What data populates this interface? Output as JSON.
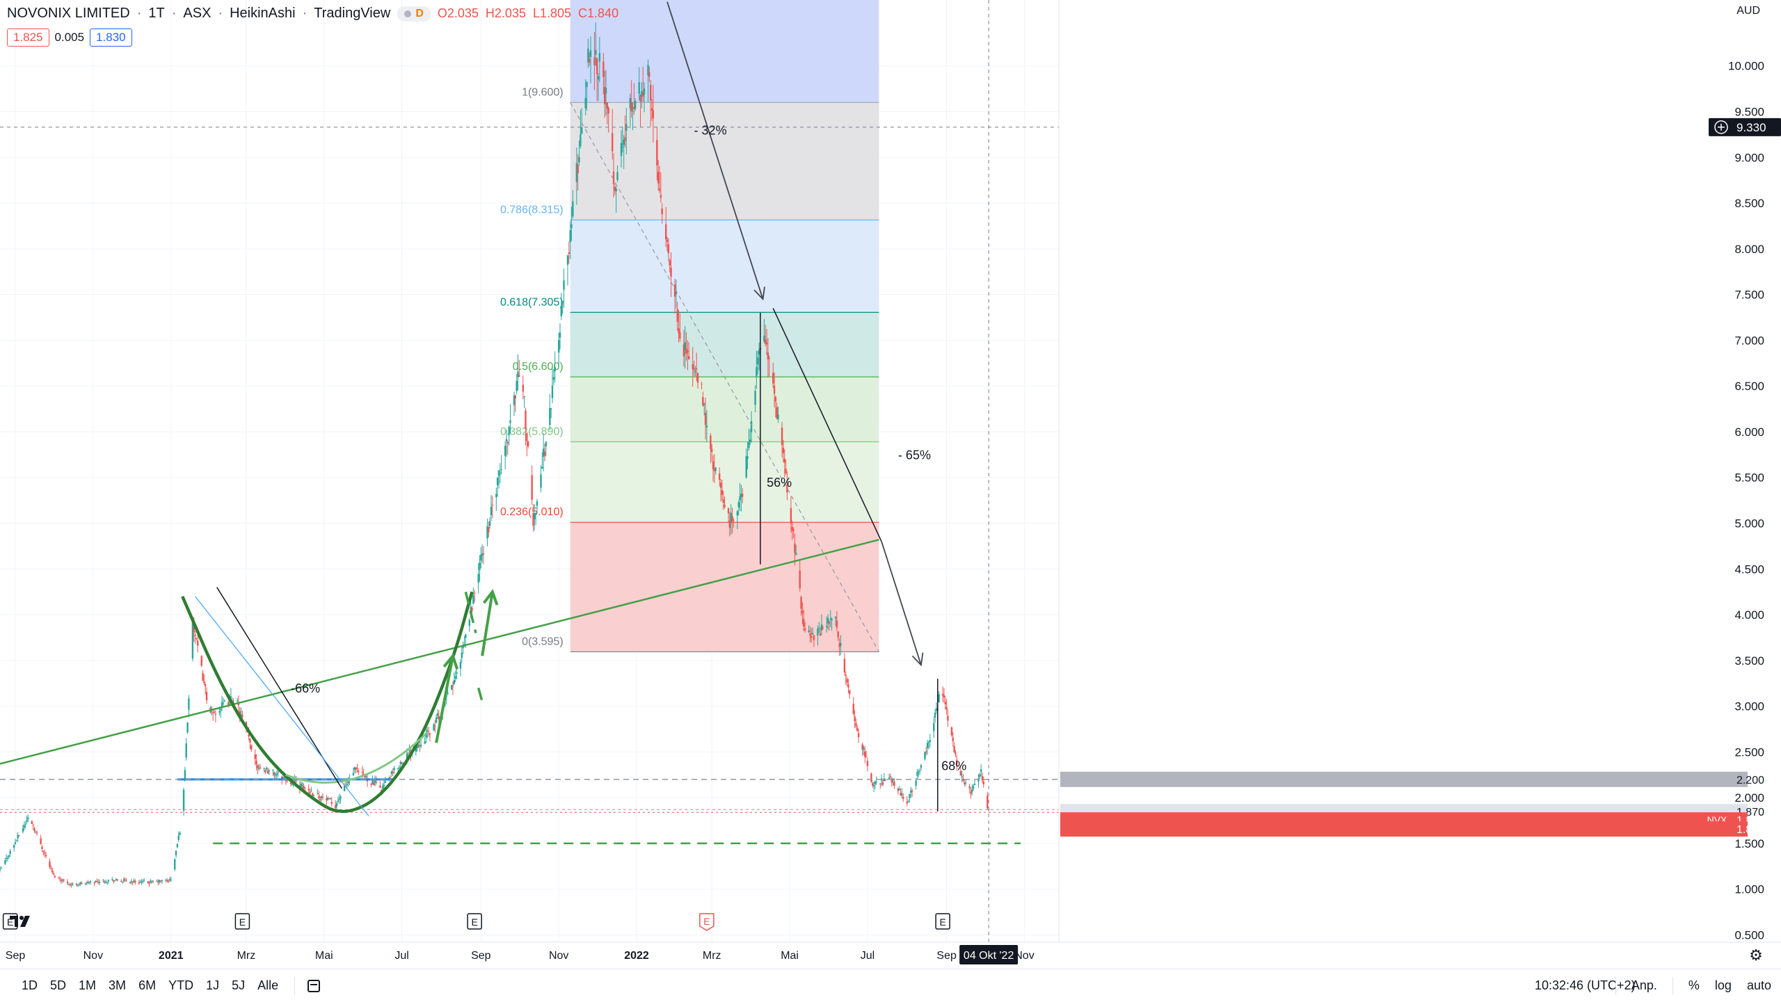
{
  "legend": {
    "symbol": "NOVONIX LIMITED",
    "interval": "1T",
    "exchange": "ASX",
    "chart_style": "HeikinAshi",
    "source": "TradingView",
    "badge_letter": "D",
    "open": "O2.035",
    "high": "H2.035",
    "low": "L1.805",
    "close": "C1.840"
  },
  "bid_ask": {
    "bid": "1.825",
    "spread": "0.005",
    "ask": "1.830"
  },
  "colors": {
    "up": "#26a69a",
    "down": "#ef5350",
    "green_lines": "#43a047",
    "blue_line": "#2962ff",
    "fib_0": "#f9d0cf",
    "fib_1": "#cdd8fa",
    "axis_text": "#131722"
  },
  "icons": {
    "logo": "tradingview-logo-icon",
    "calendar": "calendar-icon",
    "settings": "gear-icon",
    "crosshair": "crosshair-plus-icon"
  },
  "bottom_bar": {
    "timeframes": [
      "1D",
      "5D",
      "1M",
      "3M",
      "6M",
      "YTD",
      "1J",
      "5J",
      "Alle"
    ],
    "clock": "10:32:46 (UTC+2)",
    "right": [
      "Anp.",
      "%",
      "log",
      "auto"
    ]
  },
  "chart_data": {
    "type": "candlestick",
    "style": "HeikinAshi",
    "currency": "AUD",
    "y_scale": "linear",
    "ylim": [
      0.42,
      10.72
    ],
    "y_ticks": [
      "10.000",
      "9.500",
      "9.000",
      "8.500",
      "8.000",
      "7.500",
      "7.000",
      "6.500",
      "6.000",
      "5.500",
      "5.000",
      "4.500",
      "4.000",
      "3.500",
      "3.000",
      "2.500",
      "2.000",
      "1.500",
      "1.000",
      "0.500"
    ],
    "x_range": [
      "2020-08-20",
      "2022-11-28"
    ],
    "x_ticks": [
      {
        "date": "2020-09-01",
        "label": "Sep"
      },
      {
        "date": "2020-11-01",
        "label": "Nov"
      },
      {
        "date": "2021-01-01",
        "label": "2021"
      },
      {
        "date": "2021-03-01",
        "label": "Mrz"
      },
      {
        "date": "2021-05-01",
        "label": "Mai"
      },
      {
        "date": "2021-07-01",
        "label": "Jul"
      },
      {
        "date": "2021-09-01",
        "label": "Sep"
      },
      {
        "date": "2021-11-01",
        "label": "Nov"
      },
      {
        "date": "2022-01-01",
        "label": "2022"
      },
      {
        "date": "2022-03-01",
        "label": "Mrz"
      },
      {
        "date": "2022-05-01",
        "label": "Mai"
      },
      {
        "date": "2022-07-01",
        "label": "Jul"
      },
      {
        "date": "2022-09-01",
        "label": "Sep"
      },
      {
        "date": "2022-11-01",
        "label": "Nov"
      }
    ],
    "crosshair_date_label": "04 Okt '22",
    "crosshair_date": "2022-10-04",
    "crosshair_price": 9.33,
    "crosshair_price_label": "9.330",
    "earnings_markers": [
      {
        "date": "2020-08-28",
        "label": "E"
      },
      {
        "date": "2021-02-26",
        "label": "E"
      },
      {
        "date": "2021-08-27",
        "label": "E"
      },
      {
        "date": "2022-02-25",
        "label": "E",
        "highlight": true
      },
      {
        "date": "2022-08-29",
        "label": "E"
      }
    ],
    "price_badges": [
      {
        "label": "2.200",
        "value": 2.2,
        "kind": "line-gray"
      },
      {
        "label": "1.870",
        "value": 1.87,
        "kind": "gray-light"
      },
      {
        "label": "1.840",
        "value": 1.84,
        "kind": "last-red",
        "ticker": "NVX"
      },
      {
        "label": "1.825",
        "value": 1.825,
        "kind": "bid-red"
      }
    ],
    "key_points": [
      {
        "date": "2020-08-20",
        "price": 1.2
      },
      {
        "date": "2020-09-12",
        "price": 1.8
      },
      {
        "date": "2020-10-01",
        "price": 1.15
      },
      {
        "date": "2020-10-15",
        "price": 1.05
      },
      {
        "date": "2020-11-15",
        "price": 1.1
      },
      {
        "date": "2020-12-15",
        "price": 1.07
      },
      {
        "date": "2021-01-01",
        "price": 1.1
      },
      {
        "date": "2021-01-10",
        "price": 1.8
      },
      {
        "date": "2021-01-18",
        "price": 3.9
      },
      {
        "date": "2021-02-01",
        "price": 2.9
      },
      {
        "date": "2021-02-20",
        "price": 3.1
      },
      {
        "date": "2021-03-10",
        "price": 2.35
      },
      {
        "date": "2021-04-10",
        "price": 2.15
      },
      {
        "date": "2021-05-10",
        "price": 1.92
      },
      {
        "date": "2021-05-25",
        "price": 2.3
      },
      {
        "date": "2021-06-15",
        "price": 2.1
      },
      {
        "date": "2021-07-01",
        "price": 2.4
      },
      {
        "date": "2021-07-25",
        "price": 2.75
      },
      {
        "date": "2021-08-15",
        "price": 3.4
      },
      {
        "date": "2021-09-01",
        "price": 4.6
      },
      {
        "date": "2021-09-20",
        "price": 5.8
      },
      {
        "date": "2021-10-01",
        "price": 6.7
      },
      {
        "date": "2021-10-05",
        "price": 6.3
      },
      {
        "date": "2021-10-12",
        "price": 5.0
      },
      {
        "date": "2021-10-25",
        "price": 6.2
      },
      {
        "date": "2021-11-15",
        "price": 8.8
      },
      {
        "date": "2021-11-25",
        "price": 10.2
      },
      {
        "date": "2021-12-05",
        "price": 10.0
      },
      {
        "date": "2021-12-15",
        "price": 8.7
      },
      {
        "date": "2021-12-28",
        "price": 9.6
      },
      {
        "date": "2022-01-10",
        "price": 9.9
      },
      {
        "date": "2022-01-20",
        "price": 8.6
      },
      {
        "date": "2022-02-05",
        "price": 7.0
      },
      {
        "date": "2022-02-20",
        "price": 6.5
      },
      {
        "date": "2022-03-01",
        "price": 5.7
      },
      {
        "date": "2022-03-15",
        "price": 5.0
      },
      {
        "date": "2022-03-25",
        "price": 5.3
      },
      {
        "date": "2022-04-10",
        "price": 7.2
      },
      {
        "date": "2022-04-20",
        "price": 6.3
      },
      {
        "date": "2022-05-01",
        "price": 5.2
      },
      {
        "date": "2022-05-12",
        "price": 3.9
      },
      {
        "date": "2022-05-20",
        "price": 3.75
      },
      {
        "date": "2022-06-05",
        "price": 4.0
      },
      {
        "date": "2022-06-20",
        "price": 2.9
      },
      {
        "date": "2022-07-05",
        "price": 2.15
      },
      {
        "date": "2022-07-20",
        "price": 2.2
      },
      {
        "date": "2022-08-01",
        "price": 1.95
      },
      {
        "date": "2022-08-18",
        "price": 2.6
      },
      {
        "date": "2022-08-28",
        "price": 3.2
      },
      {
        "date": "2022-09-10",
        "price": 2.3
      },
      {
        "date": "2022-09-20",
        "price": 2.05
      },
      {
        "date": "2022-09-28",
        "price": 2.3
      },
      {
        "date": "2022-10-04",
        "price": 1.84
      }
    ],
    "fibonacci": {
      "start_date": "2021-11-10",
      "end_date": "2022-07-10",
      "levels": [
        {
          "ratio": "1",
          "price": 9.6,
          "label": "1(9.600)",
          "fill": "#cdd8fa",
          "line": "#a9a9b1",
          "text": "#787b86"
        },
        {
          "ratio": "0.786",
          "price": 8.315,
          "label": "0.786(8.315)",
          "fill": "#e3e3e6",
          "line": "#64b5f6",
          "text": "#64b5f6"
        },
        {
          "ratio": "0.618",
          "price": 7.305,
          "label": "0.618(7.305)",
          "fill": "#ddeafa",
          "line": "#00897b",
          "text": "#00897b"
        },
        {
          "ratio": "0.5",
          "price": 6.6,
          "label": "0.5(6.600)",
          "fill": "#cfe9e6",
          "line": "#4caf50",
          "text": "#4caf50"
        },
        {
          "ratio": "0.382",
          "price": 5.89,
          "label": "0.382(5.890)",
          "fill": "#def0db",
          "line": "#81c784",
          "text": "#81c784"
        },
        {
          "ratio": "0.236",
          "price": 5.01,
          "label": "0.236(5.010)",
          "fill": "#e6f3e3",
          "line": "#f44336",
          "text": "#f44336"
        },
        {
          "ratio": "0",
          "price": 3.595,
          "label": "0(3.595)",
          "fill": "#f9d0cf",
          "line": "#787b86",
          "text": "#787b86"
        }
      ]
    },
    "annotations": [
      {
        "text": "- 32%",
        "date": "2022-02-15",
        "price": 9.25
      },
      {
        "text": "-66%",
        "date": "2021-04-05",
        "price": 3.15
      },
      {
        "text": "56%",
        "date": "2022-04-13",
        "price": 5.4
      },
      {
        "text": "- 65%",
        "date": "2022-07-25",
        "price": 5.7
      },
      {
        "text": "68%",
        "date": "2022-08-28",
        "price": 2.3
      }
    ],
    "drawings": {
      "trendline_green": {
        "from": {
          "date": "2020-08-20",
          "price": 2.37
        },
        "to": {
          "date": "2022-07-10",
          "price": 4.82
        }
      },
      "support_blue": {
        "from": {
          "date": "2021-01-06",
          "price": 2.2
        },
        "to": {
          "date": "2021-06-25",
          "price": 2.2
        }
      },
      "dashed_green_support": {
        "from": {
          "date": "2021-02-03",
          "price": 1.5
        },
        "to": {
          "date": "2022-10-29",
          "price": 1.5
        }
      },
      "dashed_gray_2200": {
        "price": 2.2
      },
      "dashed_gray_1870": {
        "price": 1.87
      },
      "dashed_red_1840": {
        "price": 1.84
      },
      "cup_curve": [
        {
          "date": "2021-01-10",
          "price": 4.2
        },
        {
          "date": "2021-02-10",
          "price": 3.2
        },
        {
          "date": "2021-03-15",
          "price": 2.45
        },
        {
          "date": "2021-04-20",
          "price": 2.0
        },
        {
          "date": "2021-05-15",
          "price": 1.8
        },
        {
          "date": "2021-06-15",
          "price": 2.0
        },
        {
          "date": "2021-07-15",
          "price": 2.6
        },
        {
          "date": "2021-08-10",
          "price": 3.5
        },
        {
          "date": "2021-08-25",
          "price": 4.25
        }
      ],
      "black_diag_lines": [
        {
          "from": {
            "date": "2021-02-06",
            "price": 4.3
          },
          "to": {
            "date": "2021-05-15",
            "price": 2.1
          }
        },
        {
          "from": {
            "date": "2022-04-18",
            "price": 7.35
          },
          "to": {
            "date": "2022-07-12",
            "price": 4.8
          }
        }
      ],
      "blue_diag_line": {
        "from": {
          "date": "2021-01-20",
          "price": 4.2
        },
        "to": {
          "date": "2021-06-05",
          "price": 1.8
        }
      },
      "gray_dashed_diag": {
        "from": {
          "date": "2021-11-10",
          "price": 9.6
        },
        "to": {
          "date": "2022-07-10",
          "price": 3.595
        }
      },
      "arrows": [
        {
          "from": {
            "date": "2022-01-25",
            "price": 10.7
          },
          "to": {
            "date": "2022-04-10",
            "price": 7.45
          }
        },
        {
          "from": {
            "date": "2022-07-12",
            "price": 4.8
          },
          "to": {
            "date": "2022-08-12",
            "price": 3.45
          }
        }
      ],
      "vertical_measures": [
        {
          "date": "2022-04-08",
          "from": 4.55,
          "to": 7.3
        },
        {
          "date": "2022-08-25",
          "from": 1.85,
          "to": 3.3
        }
      ]
    }
  }
}
